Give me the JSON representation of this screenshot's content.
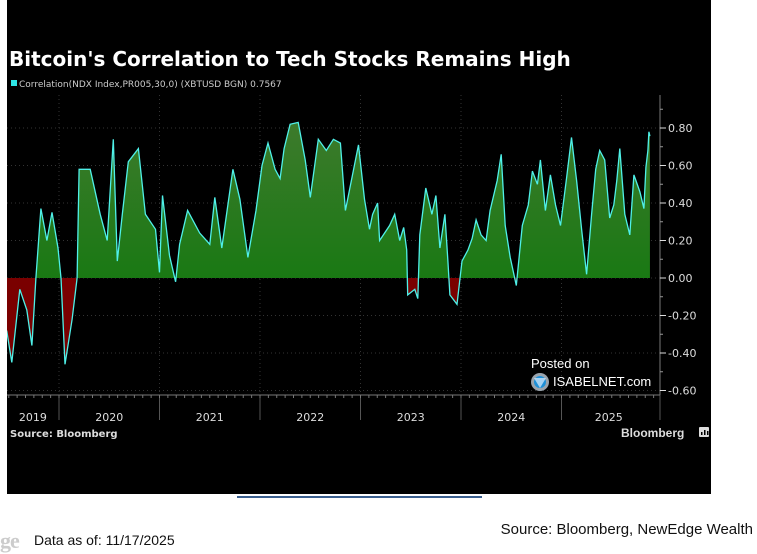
{
  "chart_data": {
    "type": "area",
    "title": "Bitcoin's Correlation to Tech Stocks Remains High",
    "legend": [
      {
        "label": "Correlation(NDX Index,PR005,30,0) (XBTUSD BGN) 0.7567",
        "color": "#2ee6e6"
      }
    ],
    "legend_position": "top-left",
    "source_label": "Source: Bloomberg",
    "brand": "Bloomberg",
    "watermark": {
      "line1": "Posted on",
      "line2": "ISABELNET.com"
    },
    "xlabel": "",
    "ylabel": "",
    "xlim": [
      2019.48,
      2025.98
    ],
    "ylim": [
      -0.65,
      0.97
    ],
    "yticks": [
      0.8,
      0.6,
      0.4,
      0.2,
      0.0,
      -0.2,
      -0.4,
      -0.6
    ],
    "ytick_labels": [
      "0.80",
      "0.60",
      "0.40",
      "0.20",
      "0.00",
      "-0.20",
      "-0.40",
      "-0.60"
    ],
    "x_categories": [
      {
        "label": "2019",
        "center": 2019.74
      },
      {
        "label": "2020",
        "center": 2020.5
      },
      {
        "label": "2021",
        "center": 2021.5
      },
      {
        "label": "2022",
        "center": 2022.5
      },
      {
        "label": "2023",
        "center": 2023.5
      },
      {
        "label": "2024",
        "center": 2024.5
      },
      {
        "label": "2025",
        "center": 2025.47
      }
    ],
    "year_boundaries": [
      2020,
      2021,
      2022,
      2023,
      2024,
      2025
    ],
    "grid": true,
    "colors": {
      "positive": "#0a7a0a",
      "positive_top": "#3a7a2a",
      "negative": "#7a0000",
      "line": "#4ff0e8"
    },
    "series": [
      {
        "name": "Correlation",
        "x": [
          2019.48,
          2019.53,
          2019.61,
          2019.68,
          2019.73,
          2019.77,
          2019.82,
          2019.88,
          2019.93,
          2019.99,
          2020.02,
          2020.06,
          2020.13,
          2020.18,
          2020.2,
          2020.31,
          2020.41,
          2020.48,
          2020.54,
          2020.58,
          2020.63,
          2020.69,
          2020.79,
          2020.86,
          2020.96,
          2021.0,
          2021.03,
          2021.1,
          2021.16,
          2021.2,
          2021.28,
          2021.4,
          2021.5,
          2021.55,
          2021.62,
          2021.73,
          2021.8,
          2021.88,
          2021.96,
          2022.02,
          2022.08,
          2022.15,
          2022.2,
          2022.24,
          2022.3,
          2022.38,
          2022.45,
          2022.5,
          2022.58,
          2022.66,
          2022.73,
          2022.8,
          2022.85,
          2022.92,
          2022.98,
          2023.04,
          2023.09,
          2023.12,
          2023.17,
          2023.19,
          2023.29,
          2023.34,
          2023.39,
          2023.43,
          2023.46,
          2023.47,
          2023.54,
          2023.57,
          2023.59,
          2023.65,
          2023.71,
          2023.75,
          2023.79,
          2023.84,
          2023.87,
          2023.89,
          2023.96,
          2024.01,
          2024.07,
          2024.11,
          2024.15,
          2024.2,
          2024.25,
          2024.29,
          2024.36,
          2024.4,
          2024.44,
          2024.49,
          2024.55,
          2024.61,
          2024.67,
          2024.71,
          2024.76,
          2024.79,
          2024.84,
          2024.89,
          2024.94,
          2024.99,
          2025.05,
          2025.1,
          2025.15,
          2025.2,
          2025.25,
          2025.3,
          2025.34,
          2025.38,
          2025.43,
          2025.48,
          2025.52,
          2025.55,
          2025.58,
          2025.63,
          2025.68,
          2025.72,
          2025.78,
          2025.82,
          2025.84,
          2025.86,
          2025.87,
          2025.88
        ],
        "y": [
          -0.28,
          -0.45,
          -0.06,
          -0.17,
          -0.36,
          0.0,
          0.37,
          0.2,
          0.35,
          0.16,
          0.0,
          -0.46,
          -0.22,
          0.0,
          0.58,
          0.58,
          0.34,
          0.2,
          0.74,
          0.09,
          0.34,
          0.62,
          0.69,
          0.34,
          0.26,
          0.03,
          0.44,
          0.12,
          -0.02,
          0.18,
          0.36,
          0.24,
          0.18,
          0.43,
          0.16,
          0.58,
          0.42,
          0.11,
          0.36,
          0.6,
          0.72,
          0.58,
          0.53,
          0.69,
          0.82,
          0.83,
          0.63,
          0.43,
          0.74,
          0.68,
          0.74,
          0.72,
          0.36,
          0.55,
          0.71,
          0.42,
          0.26,
          0.34,
          0.4,
          0.2,
          0.28,
          0.34,
          0.2,
          0.27,
          0.15,
          -0.09,
          -0.06,
          -0.11,
          0.23,
          0.48,
          0.34,
          0.44,
          0.16,
          0.34,
          0.09,
          -0.09,
          -0.14,
          0.09,
          0.15,
          0.21,
          0.31,
          0.23,
          0.2,
          0.36,
          0.52,
          0.66,
          0.28,
          0.11,
          -0.04,
          0.28,
          0.39,
          0.57,
          0.5,
          0.63,
          0.36,
          0.55,
          0.39,
          0.28,
          0.53,
          0.75,
          0.52,
          0.26,
          0.02,
          0.34,
          0.58,
          0.68,
          0.63,
          0.32,
          0.39,
          0.52,
          0.69,
          0.34,
          0.23,
          0.55,
          0.46,
          0.37,
          0.59,
          0.68,
          0.78,
          0.7567
        ]
      }
    ]
  },
  "footer": {
    "data_as_of": "Data as of:  11/17/2025",
    "source": "Source: Bloomberg, NewEdge Wealth",
    "logo_fragment": "ge"
  }
}
